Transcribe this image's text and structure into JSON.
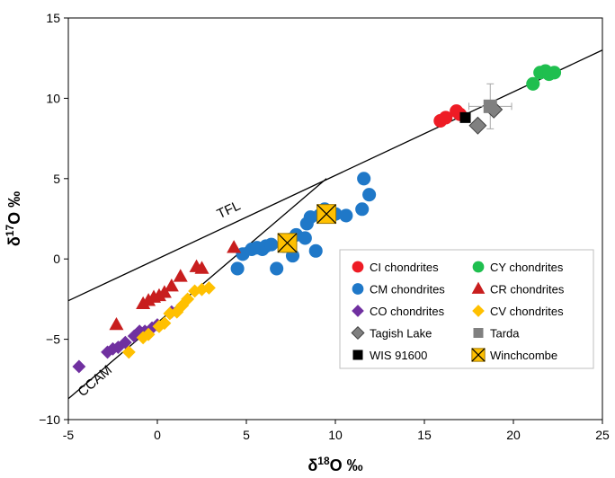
{
  "chart_data": {
    "type": "scatter",
    "xlabel": "δ18O ‰",
    "ylabel": "δ17O ‰",
    "xlabel_parts": {
      "symbol": "δ",
      "superscript": "18",
      "rest": "O ‰"
    },
    "ylabel_parts": {
      "symbol": "δ",
      "superscript": "17",
      "rest": "O ‰"
    },
    "xlim": [
      -5,
      25
    ],
    "ylim": [
      -10,
      15
    ],
    "xticks": [
      -5,
      0,
      5,
      10,
      15,
      20,
      25
    ],
    "yticks": [
      -10,
      -5,
      0,
      5,
      10,
      15
    ],
    "xtick_labels": [
      "-5",
      "0",
      "5",
      "10",
      "15",
      "20",
      "25"
    ],
    "ytick_labels": [
      "−10",
      "−5",
      "0",
      "5",
      "10",
      "15"
    ],
    "grid": false,
    "legend_position": "bottom-right",
    "reference_lines": [
      {
        "name": "TFL",
        "points": [
          [
            -5,
            -2.6
          ],
          [
            25,
            13.0
          ]
        ],
        "label_at": [
          3.5,
          2.5
        ]
      },
      {
        "name": "CCAM",
        "points": [
          [
            -5,
            -8.7
          ],
          [
            9.5,
            5.0
          ]
        ],
        "label_at": [
          -4.2,
          -8.6
        ]
      }
    ],
    "series": [
      {
        "name": "CI chondrites",
        "marker": "circle",
        "color": "#ee1c25",
        "points": [
          [
            15.9,
            8.6
          ],
          [
            16.2,
            8.8
          ],
          [
            16.8,
            9.2
          ],
          [
            17.0,
            9.0
          ]
        ]
      },
      {
        "name": "CY chondrites",
        "marker": "circle",
        "color": "#1fbf4f",
        "points": [
          [
            21.1,
            10.9
          ],
          [
            21.5,
            11.6
          ],
          [
            21.8,
            11.7
          ],
          [
            22.0,
            11.5
          ],
          [
            22.3,
            11.6
          ]
        ]
      },
      {
        "name": "CM chondrites",
        "marker": "circle",
        "color": "#1f78c8",
        "points": [
          [
            4.5,
            -0.6
          ],
          [
            4.8,
            0.3
          ],
          [
            5.3,
            0.6
          ],
          [
            5.6,
            0.7
          ],
          [
            5.9,
            0.6
          ],
          [
            6.1,
            0.8
          ],
          [
            6.4,
            0.9
          ],
          [
            6.7,
            -0.6
          ],
          [
            7.1,
            0.8
          ],
          [
            7.4,
            1.2
          ],
          [
            7.6,
            0.2
          ],
          [
            7.8,
            1.5
          ],
          [
            8.3,
            1.3
          ],
          [
            8.4,
            2.2
          ],
          [
            8.6,
            2.6
          ],
          [
            8.9,
            0.5
          ],
          [
            9.1,
            2.7
          ],
          [
            9.4,
            3.1
          ],
          [
            9.7,
            2.9
          ],
          [
            10.0,
            2.8
          ],
          [
            10.6,
            2.7
          ],
          [
            11.5,
            3.1
          ],
          [
            11.6,
            5.0
          ],
          [
            11.9,
            4.0
          ]
        ]
      },
      {
        "name": "CR chondrites",
        "marker": "triangle",
        "color": "#c81e1e",
        "points": [
          [
            -2.3,
            -4.1
          ],
          [
            -0.8,
            -2.8
          ],
          [
            -0.5,
            -2.6
          ],
          [
            -0.2,
            -2.4
          ],
          [
            0.1,
            -2.3
          ],
          [
            0.4,
            -2.1
          ],
          [
            0.8,
            -1.7
          ],
          [
            1.3,
            -1.1
          ],
          [
            2.2,
            -0.5
          ],
          [
            2.5,
            -0.6
          ],
          [
            4.3,
            0.7
          ]
        ]
      },
      {
        "name": "CO chondrites",
        "marker": "diamond",
        "color": "#7030a0",
        "points": [
          [
            -4.4,
            -6.7
          ],
          [
            -2.8,
            -5.8
          ],
          [
            -2.5,
            -5.6
          ],
          [
            -2.2,
            -5.5
          ],
          [
            -1.8,
            -5.2
          ],
          [
            -1.3,
            -4.8
          ],
          [
            -1.0,
            -4.5
          ],
          [
            -0.7,
            -4.5
          ],
          [
            -0.3,
            -4.3
          ],
          [
            0.0,
            -4.1
          ],
          [
            0.8,
            -3.3
          ]
        ]
      },
      {
        "name": "CV chondrites",
        "marker": "diamond",
        "color": "#ffc000",
        "points": [
          [
            -1.6,
            -5.8
          ],
          [
            -0.8,
            -4.9
          ],
          [
            -0.5,
            -4.7
          ],
          [
            0.1,
            -4.2
          ],
          [
            0.4,
            -4.0
          ],
          [
            0.7,
            -3.4
          ],
          [
            1.1,
            -3.3
          ],
          [
            1.4,
            -2.9
          ],
          [
            1.7,
            -2.5
          ],
          [
            2.1,
            -2.0
          ],
          [
            2.5,
            -1.9
          ],
          [
            2.9,
            -1.8
          ]
        ]
      },
      {
        "name": "Tagish Lake",
        "marker": "diamond",
        "color": "#808080",
        "points": [
          [
            18.0,
            8.3
          ],
          [
            18.9,
            9.3
          ]
        ]
      },
      {
        "name": "Tarda",
        "marker": "square",
        "color": "#808080",
        "points": [
          [
            18.7,
            9.5
          ]
        ],
        "error_bars": [
          {
            "xerr": 1.2,
            "yerr": 1.4
          }
        ]
      },
      {
        "name": "WIS 91600",
        "marker": "square",
        "color": "#000000",
        "points": [
          [
            17.3,
            8.8
          ]
        ]
      },
      {
        "name": "Winchcombe",
        "marker": "x-square",
        "color": "#ffc000",
        "points": [
          [
            7.3,
            1.0
          ],
          [
            9.5,
            2.8
          ]
        ]
      }
    ],
    "legend": {
      "columns": [
        [
          "CI chondrites",
          "CM chondrites",
          "CO chondrites",
          "Tagish Lake",
          "WIS 91600"
        ],
        [
          "CY chondrites",
          "CR chondrites",
          "CV chondrites",
          "Tarda",
          "Winchcombe"
        ]
      ]
    }
  }
}
